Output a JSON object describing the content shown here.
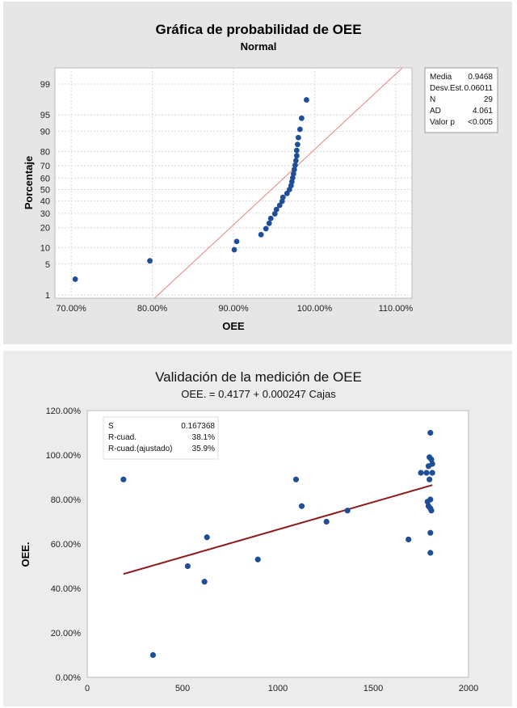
{
  "chart_data": [
    {
      "type": "scatter",
      "title": "Gráfica de probabilidad de OEE",
      "subtitle": "Normal",
      "xlabel": "OEE",
      "ylabel": "Porcentaje",
      "xlim": [
        0.68,
        1.12
      ],
      "x_ticks": [
        {
          "value": 0.7,
          "label": "70.00%"
        },
        {
          "value": 0.8,
          "label": "80.00%"
        },
        {
          "value": 0.9,
          "label": "90.00%"
        },
        {
          "value": 1.0,
          "label": "100.00%"
        },
        {
          "value": 1.1,
          "label": "110.00%"
        }
      ],
      "y_scale": "normal-probability",
      "y_ticks": [
        1,
        5,
        10,
        20,
        30,
        40,
        50,
        60,
        70,
        80,
        90,
        95,
        99
      ],
      "points": [
        {
          "x": 0.705,
          "p": 2.4
        },
        {
          "x": 0.797,
          "p": 5.8
        },
        {
          "x": 0.901,
          "p": 9.2
        },
        {
          "x": 0.904,
          "p": 12.6
        },
        {
          "x": 0.934,
          "p": 16.0
        },
        {
          "x": 0.94,
          "p": 19.4
        },
        {
          "x": 0.944,
          "p": 22.8
        },
        {
          "x": 0.946,
          "p": 26.2
        },
        {
          "x": 0.951,
          "p": 29.6
        },
        {
          "x": 0.953,
          "p": 33.0
        },
        {
          "x": 0.957,
          "p": 36.4
        },
        {
          "x": 0.96,
          "p": 39.8
        },
        {
          "x": 0.961,
          "p": 43.2
        },
        {
          "x": 0.966,
          "p": 46.6
        },
        {
          "x": 0.969,
          "p": 50.0
        },
        {
          "x": 0.971,
          "p": 53.4
        },
        {
          "x": 0.972,
          "p": 56.8
        },
        {
          "x": 0.973,
          "p": 60.2
        },
        {
          "x": 0.974,
          "p": 63.6
        },
        {
          "x": 0.975,
          "p": 67.0
        },
        {
          "x": 0.976,
          "p": 70.4
        },
        {
          "x": 0.977,
          "p": 73.8
        },
        {
          "x": 0.978,
          "p": 77.2
        },
        {
          "x": 0.978,
          "p": 80.6
        },
        {
          "x": 0.979,
          "p": 84.0
        },
        {
          "x": 0.98,
          "p": 87.4
        },
        {
          "x": 0.982,
          "p": 90.8
        },
        {
          "x": 0.984,
          "p": 94.2
        },
        {
          "x": 0.99,
          "p": 97.6
        }
      ],
      "fit_line": {
        "mean": 0.9468,
        "stdev": 0.06011
      },
      "stats": [
        {
          "label": "Media",
          "value": "0.9468"
        },
        {
          "label": "Desv.Est.",
          "value": "0.06011"
        },
        {
          "label": "N",
          "value": "29"
        },
        {
          "label": "AD",
          "value": "4.061"
        },
        {
          "label": "Valor p",
          "value": "<0.005"
        }
      ]
    },
    {
      "type": "scatter",
      "title": "Validación de la medición de OEE",
      "subtitle": "OEE. = 0.4177 + 0.000247 Cajas",
      "xlabel": "",
      "ylabel": "OEE.",
      "xlim": [
        0,
        2000
      ],
      "ylim": [
        0,
        1.2
      ],
      "x_ticks": [
        0,
        500,
        1000,
        1500,
        2000
      ],
      "y_ticks": [
        {
          "value": 0.0,
          "label": "0.00%"
        },
        {
          "value": 0.2,
          "label": "20.00%"
        },
        {
          "value": 0.4,
          "label": "40.00%"
        },
        {
          "value": 0.6,
          "label": "60.00%"
        },
        {
          "value": 0.8,
          "label": "80.00%"
        },
        {
          "value": 1.0,
          "label": "100.00%"
        },
        {
          "value": 1.2,
          "label": "120.00%"
        }
      ],
      "points": [
        {
          "x": 190,
          "y": 0.89
        },
        {
          "x": 345,
          "y": 0.1
        },
        {
          "x": 527,
          "y": 0.5
        },
        {
          "x": 615,
          "y": 0.43
        },
        {
          "x": 628,
          "y": 0.63
        },
        {
          "x": 895,
          "y": 0.53
        },
        {
          "x": 1095,
          "y": 0.89
        },
        {
          "x": 1125,
          "y": 0.77
        },
        {
          "x": 1255,
          "y": 0.7
        },
        {
          "x": 1365,
          "y": 0.75
        },
        {
          "x": 1685,
          "y": 0.62
        },
        {
          "x": 1750,
          "y": 0.92
        },
        {
          "x": 1780,
          "y": 0.92
        },
        {
          "x": 1785,
          "y": 0.79
        },
        {
          "x": 1790,
          "y": 0.77
        },
        {
          "x": 1790,
          "y": 0.95
        },
        {
          "x": 1795,
          "y": 0.99
        },
        {
          "x": 1795,
          "y": 0.89
        },
        {
          "x": 1800,
          "y": 0.8
        },
        {
          "x": 1800,
          "y": 0.76
        },
        {
          "x": 1800,
          "y": 0.65
        },
        {
          "x": 1800,
          "y": 0.56
        },
        {
          "x": 1805,
          "y": 0.75
        },
        {
          "x": 1800,
          "y": 1.1
        },
        {
          "x": 1805,
          "y": 0.98
        },
        {
          "x": 1810,
          "y": 0.96
        },
        {
          "x": 1810,
          "y": 0.92
        }
      ],
      "regression": {
        "intercept": 0.4177,
        "slope": 0.000247,
        "x_from": 190,
        "x_to": 1810
      },
      "stats": [
        {
          "label": "S",
          "value": "0.167368"
        },
        {
          "label": "R-cuad.",
          "value": "38.1%"
        },
        {
          "label": "R-cuad.(ajustado)",
          "value": "35.9%"
        }
      ]
    }
  ],
  "colors": {
    "point": "#1f4e99",
    "fit_line_top": "#e8837e",
    "fit_line_bottom": "#8b1a1a",
    "grid": "#d8d8d8"
  }
}
